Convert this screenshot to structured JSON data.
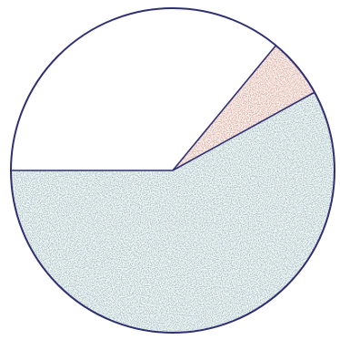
{
  "chart_data": {
    "type": "pie",
    "categories": [
      null,
      null,
      null
    ],
    "values": [
      58,
      6,
      36
    ],
    "colors": [
      "#6a969b",
      "#c4735c",
      "#ffffff"
    ]
  }
}
